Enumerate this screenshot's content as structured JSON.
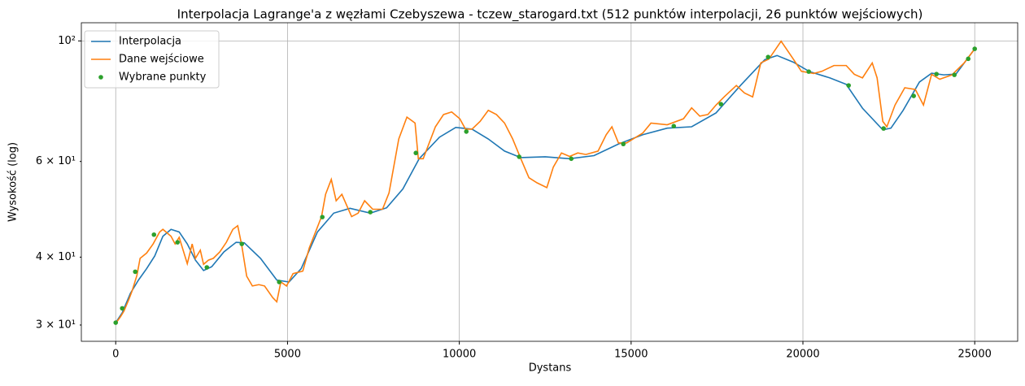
{
  "chart_data": {
    "type": "line",
    "title": "Interpolacja Lagrange'a z węzłami Czebyszewa - tczew_starogard.txt (512 punktów interpolacji, 26 punktów wejściowych)",
    "xlabel": "Dystans",
    "ylabel": "Wysokość (log)",
    "xlim": [
      -1000,
      26250
    ],
    "xticks": [
      0,
      5000,
      10000,
      15000,
      20000,
      25000
    ],
    "ylim": [
      28,
      108
    ],
    "ylog": true,
    "yticks": [
      {
        "value": 100,
        "label": "10²"
      }
    ],
    "yminorticks": [
      {
        "value": 30,
        "label": "3 × 10¹"
      },
      {
        "value": 40,
        "label": "4 × 10¹"
      },
      {
        "value": 60,
        "label": "6 × 10¹"
      }
    ],
    "grid": true,
    "legend": "upper left",
    "series": [
      {
        "name": "Interpolacja",
        "color": "#1f77b4",
        "style": "line",
        "x": [
          0,
          189,
          426,
          663,
          900,
          1136,
          1373,
          1610,
          1847,
          2083,
          2320,
          2557,
          2794,
          3149,
          3504,
          3741,
          4214,
          4688,
          5043,
          5398,
          5871,
          6345,
          6818,
          7410,
          7884,
          8357,
          8831,
          9422,
          9896,
          10369,
          10843,
          11316,
          11790,
          12500,
          13210,
          13920,
          14631,
          15341,
          16051,
          16761,
          17471,
          18182,
          18892,
          19247,
          19720,
          20194,
          20786,
          21259,
          21733,
          22325,
          22561,
          22916,
          23390,
          23745,
          24100,
          24455,
          25000
        ],
        "values": [
          30.3,
          31.6,
          34.3,
          36.3,
          38.1,
          40.2,
          43.7,
          45.0,
          44.5,
          42.3,
          39.5,
          37.8,
          38.4,
          40.9,
          42.6,
          42.5,
          39.8,
          36.3,
          36.0,
          38.1,
          44.5,
          48.2,
          49.2,
          48.2,
          49.3,
          53.4,
          60.7,
          66.5,
          69.3,
          68.8,
          66.0,
          62.7,
          61.0,
          61.2,
          60.7,
          61.5,
          64.6,
          67.2,
          69.1,
          69.5,
          73.7,
          82.8,
          92.4,
          94.0,
          91.4,
          87.8,
          85.5,
          83.2,
          75.2,
          68.6,
          69.1,
          74.5,
          84.0,
          87.2,
          86.6,
          86.9,
          96.7
        ]
      },
      {
        "name": "Dane wejściowe",
        "color": "#ff7f0e",
        "style": "line",
        "x": [
          0,
          142,
          237,
          379,
          473,
          616,
          710,
          900,
          1089,
          1278,
          1373,
          1610,
          1728,
          1847,
          2083,
          2225,
          2320,
          2462,
          2557,
          2699,
          2841,
          3030,
          3220,
          3409,
          3551,
          3669,
          3812,
          3977,
          4167,
          4332,
          4569,
          4688,
          4806,
          4972,
          5161,
          5445,
          5634,
          5990,
          6108,
          6274,
          6416,
          6582,
          6865,
          7055,
          7244,
          7481,
          7765,
          7954,
          8238,
          8475,
          8712,
          8807,
          8949,
          9304,
          9541,
          9778,
          10014,
          10180,
          10369,
          10606,
          10843,
          11079,
          11316,
          11553,
          11790,
          12026,
          12263,
          12547,
          12736,
          12973,
          13210,
          13447,
          13683,
          14038,
          14275,
          14441,
          14631,
          14867,
          15341,
          15578,
          16051,
          16524,
          16761,
          16998,
          17235,
          17471,
          17708,
          18063,
          18300,
          18537,
          18774,
          19010,
          19365,
          19720,
          19957,
          20312,
          20549,
          20904,
          21259,
          21496,
          21733,
          22017,
          22159,
          22325,
          22443,
          22680,
          22964,
          23272,
          23508,
          23745,
          23982,
          24337,
          24692,
          25000
        ],
        "values": [
          30.2,
          31.1,
          31.8,
          33.4,
          34.6,
          37.0,
          39.8,
          40.7,
          42.3,
          44.5,
          45.0,
          43.7,
          42.3,
          43.5,
          38.9,
          42.3,
          39.8,
          41.2,
          38.8,
          39.5,
          39.8,
          40.9,
          42.6,
          45.0,
          45.7,
          42.0,
          36.9,
          35.4,
          35.6,
          35.4,
          33.7,
          33.1,
          36.0,
          35.4,
          37.3,
          37.7,
          41.6,
          47.5,
          52.2,
          55.6,
          50.8,
          52.2,
          47.5,
          48.2,
          50.8,
          49.0,
          49.0,
          52.5,
          66.0,
          72.4,
          70.6,
          60.7,
          60.7,
          69.5,
          73.2,
          74.0,
          71.9,
          68.8,
          68.8,
          71.1,
          74.5,
          73.2,
          70.6,
          66.0,
          60.7,
          56.0,
          54.8,
          53.7,
          58.6,
          62.2,
          61.3,
          62.2,
          61.8,
          62.7,
          67.2,
          69.5,
          64.9,
          64.9,
          67.7,
          70.6,
          70.1,
          71.9,
          75.3,
          72.7,
          73.2,
          76.2,
          78.9,
          82.8,
          80.2,
          78.9,
          91.1,
          92.6,
          99.9,
          92.6,
          87.9,
          87.1,
          87.9,
          90.1,
          90.1,
          86.8,
          85.5,
          91.1,
          85.5,
          71.1,
          69.5,
          76.2,
          82.0,
          81.4,
          76.2,
          86.8,
          85.0,
          86.6,
          91.1,
          96.7
        ]
      },
      {
        "name": "Wybrane punkty",
        "color": "#2ca02c",
        "style": "marker",
        "x": [
          0,
          189,
          568,
          1113,
          1799,
          2652,
          3670,
          4758,
          6013,
          7410,
          8736,
          10204,
          11742,
          13258,
          14773,
          16241,
          17614,
          18987,
          20170,
          21330,
          22348,
          23224,
          23887,
          24408,
          24811,
          25000
        ],
        "values": [
          30.3,
          32.2,
          37.6,
          44.0,
          42.6,
          38.3,
          42.3,
          36.0,
          47.4,
          48.4,
          62.2,
          68.1,
          61.2,
          60.7,
          64.6,
          69.7,
          76.5,
          93.4,
          87.8,
          82.8,
          69.0,
          79.2,
          86.9,
          86.6,
          92.7,
          96.7
        ]
      }
    ]
  }
}
